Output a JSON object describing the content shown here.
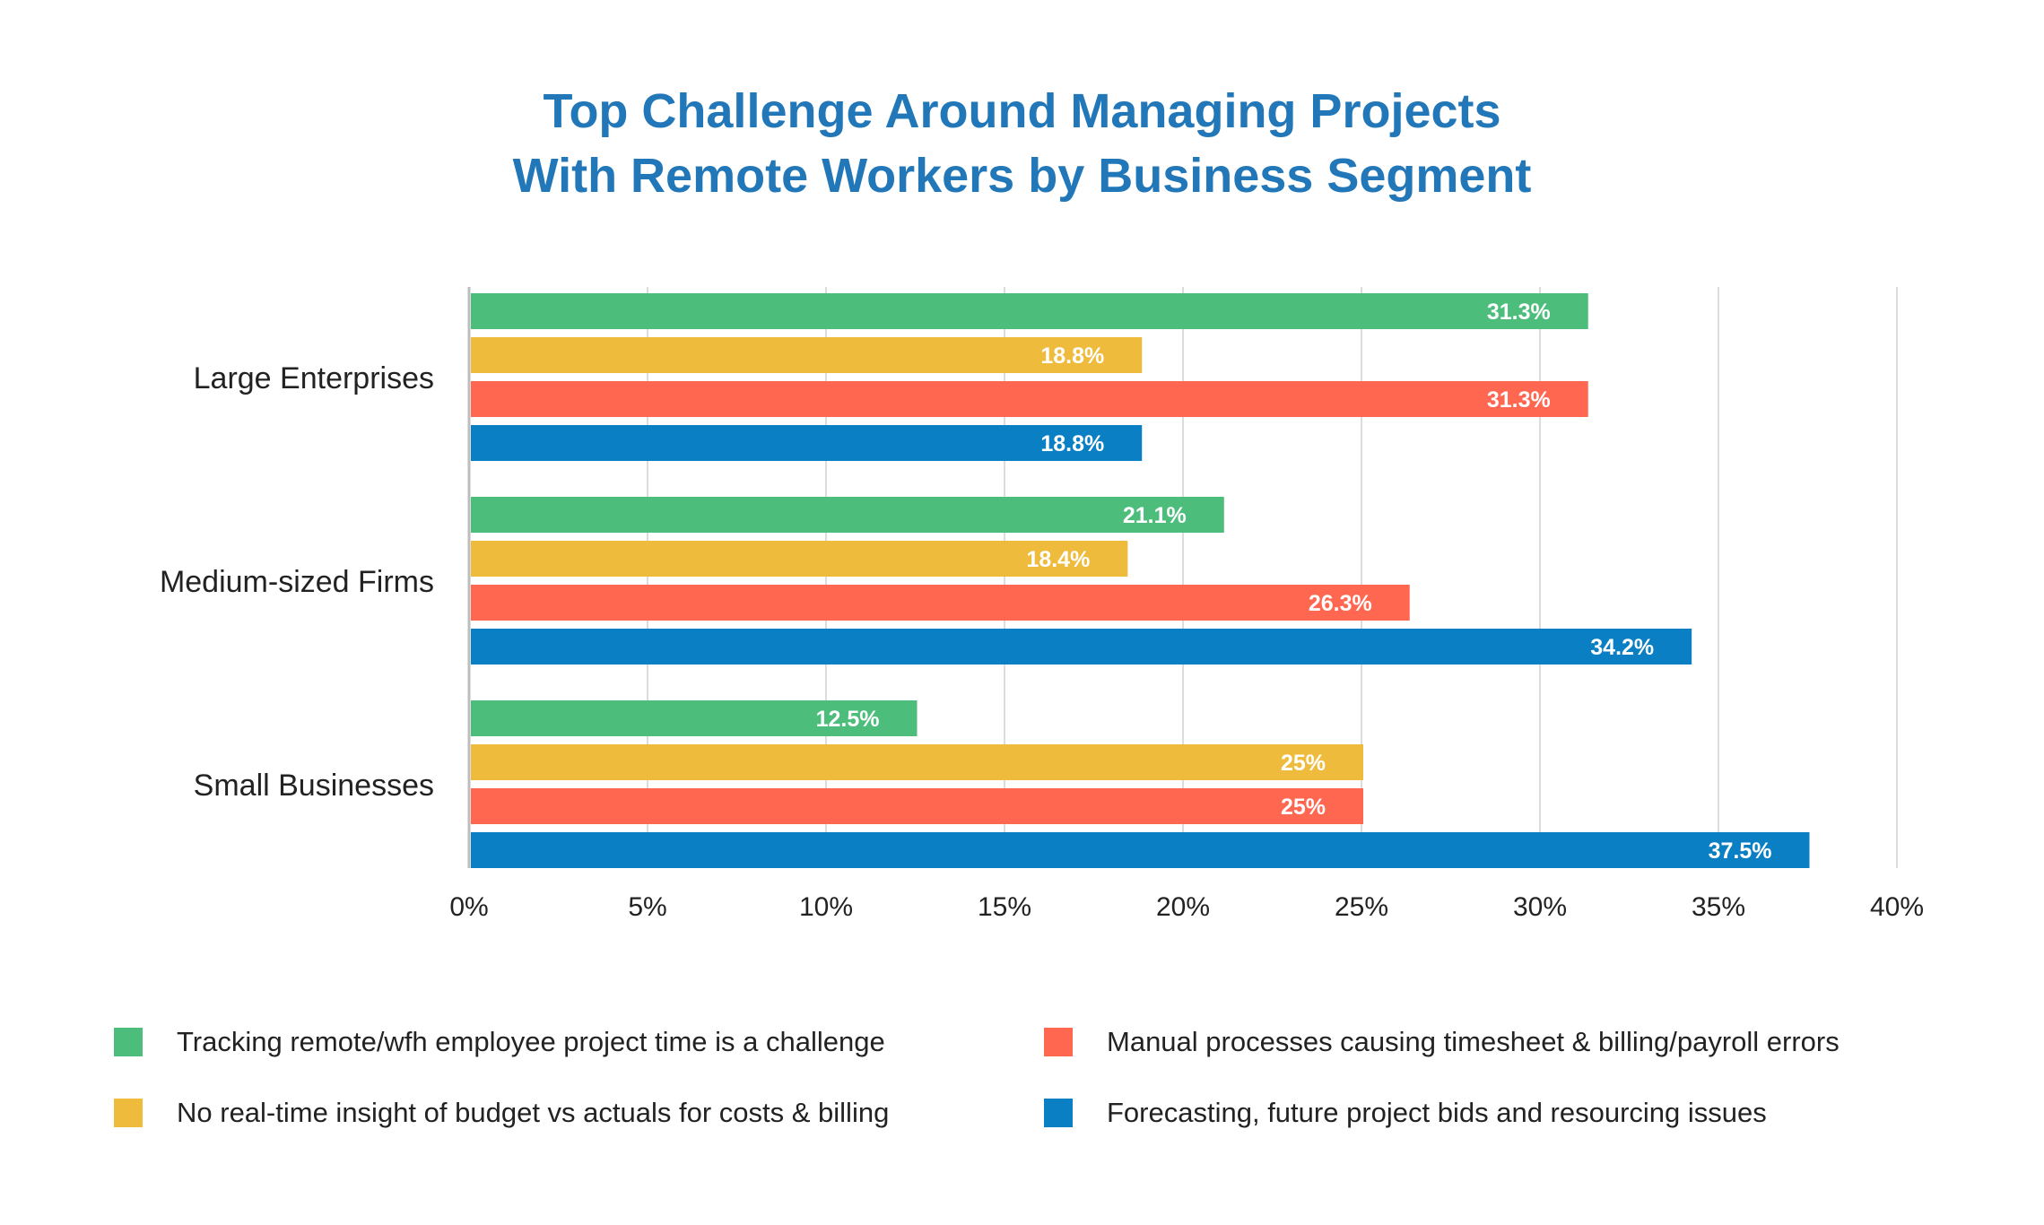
{
  "title_line1": "Top Challenge Around Managing Projects",
  "title_line2": "With Remote Workers by Business Segment",
  "chart_data": {
    "type": "bar",
    "orientation": "horizontal",
    "categories": [
      "Large Enterprises",
      "Medium-sized Firms",
      "Small Businesses"
    ],
    "series": [
      {
        "name": "Tracking remote/wfh employee project time is a challenge",
        "color": "#4dbd7c",
        "values": [
          31.3,
          21.1,
          12.5
        ],
        "labels": [
          "31.3%",
          "21.1%",
          "12.5%"
        ]
      },
      {
        "name": "No real-time insight of budget vs actuals for costs & billing",
        "color": "#efbb3c",
        "values": [
          18.8,
          18.4,
          25
        ],
        "labels": [
          "18.8%",
          "18.4%",
          "25%"
        ]
      },
      {
        "name": "Manual processes causing timesheet & billing/payroll errors",
        "color": "#ff6750",
        "values": [
          31.3,
          26.3,
          25
        ],
        "labels": [
          "31.3%",
          "26.3%",
          "25%"
        ]
      },
      {
        "name": "Forecasting, future project bids and resourcing issues",
        "color": "#0a7fc3",
        "values": [
          18.8,
          34.2,
          37.5
        ],
        "labels": [
          "18.8%",
          "34.2%",
          "37.5%"
        ]
      }
    ],
    "xlim": [
      0,
      40
    ],
    "x_ticks": [
      0,
      5,
      10,
      15,
      20,
      25,
      30,
      35,
      40
    ],
    "x_tick_labels": [
      "0%",
      "5%",
      "10%",
      "15%",
      "20%",
      "25%",
      "30%",
      "35%",
      "40%"
    ],
    "grid": true,
    "legend_position": "bottom"
  }
}
